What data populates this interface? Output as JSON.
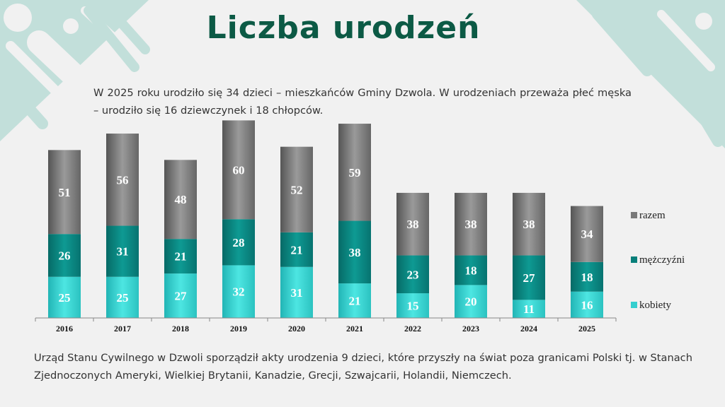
{
  "title": "Liczba urodzeń",
  "intro": "W 2025 roku urodziło się 34 dzieci – mieszkańców Gminy Dzwola. W urodzeniach przeważa płeć męska – urodziło się 16 dziewczynek i 18 chłopców.",
  "footer": "Urząd Stanu Cywilnego w Dzwoli sporządził akty urodzenia 9 dzieci, które przyszły na świat poza granicami Polski tj. w Stanach Zjednoczonych Ameryki, Wielkiej Brytanii, Kanadzie, Grecji, Szwajcarii, Holandii, Niemczech.",
  "colors": {
    "title": "#0c5a45",
    "kobiety": "#35cfcf",
    "mezczyzni": "#087f7a",
    "razem": "#7a7a7a",
    "decoration": "#c2dfda"
  },
  "chart_data": {
    "type": "bar",
    "stacked": true,
    "categories": [
      "2016",
      "2017",
      "2018",
      "2019",
      "2020",
      "2021",
      "2022",
      "2023",
      "2024",
      "2025"
    ],
    "series": [
      {
        "name": "kobiety",
        "values": [
          25,
          25,
          27,
          32,
          31,
          21,
          15,
          20,
          11,
          16
        ]
      },
      {
        "name": "mężczyźni",
        "values": [
          26,
          31,
          21,
          28,
          21,
          38,
          23,
          18,
          27,
          18
        ]
      },
      {
        "name": "razem",
        "values": [
          51,
          56,
          48,
          60,
          52,
          59,
          38,
          38,
          38,
          34
        ]
      }
    ],
    "legend_order": [
      "razem",
      "mężczyźni",
      "kobiety"
    ],
    "legend_position": "right",
    "data_labels": true,
    "grid": false
  }
}
